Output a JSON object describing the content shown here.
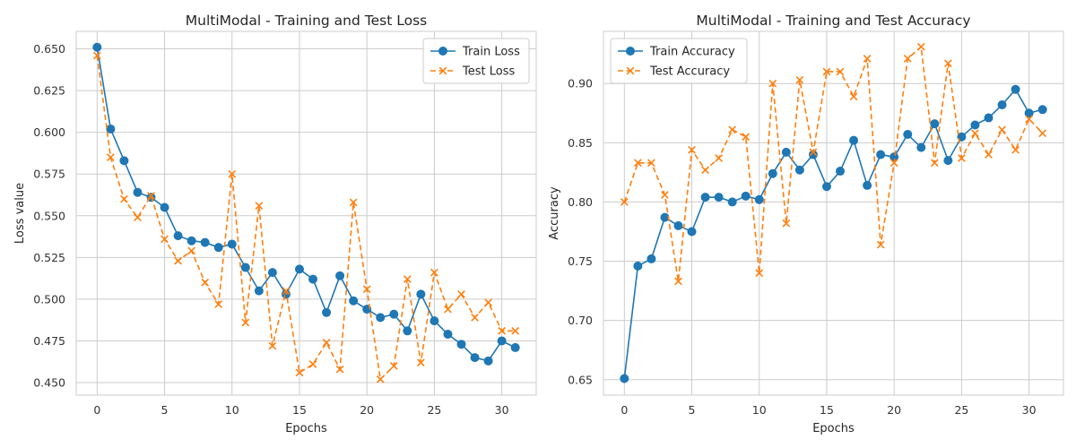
{
  "chart_data": [
    {
      "type": "line",
      "title": "MultiModal - Training and Test Loss",
      "xlabel": "Epochs",
      "ylabel": "Loss value",
      "xlim": [
        -1.55,
        32.55
      ],
      "ylim": [
        0.4425,
        0.6605
      ],
      "xticks": [
        0,
        5,
        10,
        15,
        20,
        25,
        30
      ],
      "yticks": [
        0.45,
        0.475,
        0.5,
        0.525,
        0.55,
        0.575,
        0.6,
        0.625,
        0.65
      ],
      "ytick_labels": [
        "0.450",
        "0.475",
        "0.500",
        "0.525",
        "0.550",
        "0.575",
        "0.600",
        "0.625",
        "0.650"
      ],
      "grid": true,
      "legend_position": "top-right",
      "x": [
        0,
        1,
        2,
        3,
        4,
        5,
        6,
        7,
        8,
        9,
        10,
        11,
        12,
        13,
        14,
        15,
        16,
        17,
        18,
        19,
        20,
        21,
        22,
        23,
        24,
        25,
        26,
        27,
        28,
        29,
        30,
        31
      ],
      "series": [
        {
          "name": "Train Loss",
          "color": "#1f77b4",
          "linestyle": "solid",
          "marker": "circle",
          "values": [
            0.651,
            0.602,
            0.583,
            0.564,
            0.561,
            0.555,
            0.538,
            0.535,
            0.534,
            0.531,
            0.533,
            0.519,
            0.505,
            0.516,
            0.503,
            0.518,
            0.512,
            0.492,
            0.514,
            0.499,
            0.494,
            0.489,
            0.491,
            0.481,
            0.503,
            0.487,
            0.479,
            0.473,
            0.465,
            0.463,
            0.475,
            0.471
          ]
        },
        {
          "name": "Test Loss",
          "color": "#ff7f0e",
          "linestyle": "dashed",
          "marker": "x",
          "values": [
            0.646,
            0.585,
            0.56,
            0.549,
            0.562,
            0.536,
            0.523,
            0.529,
            0.51,
            0.497,
            0.575,
            0.486,
            0.556,
            0.472,
            0.505,
            0.456,
            0.461,
            0.474,
            0.458,
            0.558,
            0.506,
            0.452,
            0.46,
            0.512,
            0.462,
            0.516,
            0.494,
            0.503,
            0.489,
            0.498,
            0.481,
            0.481
          ]
        }
      ]
    },
    {
      "type": "line",
      "title": "MultiModal - Training and Test Accuracy",
      "xlabel": "Epochs",
      "ylabel": "Accuracy",
      "xlim": [
        -1.55,
        32.55
      ],
      "ylim": [
        0.637,
        0.944
      ],
      "xticks": [
        0,
        5,
        10,
        15,
        20,
        25,
        30
      ],
      "yticks": [
        0.65,
        0.7,
        0.75,
        0.8,
        0.85,
        0.9
      ],
      "ytick_labels": [
        "0.65",
        "0.70",
        "0.75",
        "0.80",
        "0.85",
        "0.90"
      ],
      "grid": true,
      "legend_position": "top-left",
      "x": [
        0,
        1,
        2,
        3,
        4,
        5,
        6,
        7,
        8,
        9,
        10,
        11,
        12,
        13,
        14,
        15,
        16,
        17,
        18,
        19,
        20,
        21,
        22,
        23,
        24,
        25,
        26,
        27,
        28,
        29,
        30,
        31
      ],
      "series": [
        {
          "name": "Train Accuracy",
          "color": "#1f77b4",
          "linestyle": "solid",
          "marker": "circle",
          "values": [
            0.651,
            0.746,
            0.752,
            0.787,
            0.78,
            0.775,
            0.804,
            0.804,
            0.8,
            0.805,
            0.802,
            0.824,
            0.842,
            0.827,
            0.84,
            0.813,
            0.826,
            0.852,
            0.814,
            0.84,
            0.838,
            0.857,
            0.846,
            0.866,
            0.835,
            0.855,
            0.865,
            0.871,
            0.882,
            0.895,
            0.875,
            0.878
          ]
        },
        {
          "name": "Test Accuracy",
          "color": "#ff7f0e",
          "linestyle": "dashed",
          "marker": "x",
          "values": [
            0.8,
            0.833,
            0.833,
            0.806,
            0.733,
            0.844,
            0.827,
            0.837,
            0.861,
            0.855,
            0.74,
            0.9,
            0.782,
            0.903,
            0.842,
            0.91,
            0.91,
            0.889,
            0.921,
            0.764,
            0.833,
            0.921,
            0.931,
            0.833,
            0.917,
            0.837,
            0.858,
            0.84,
            0.861,
            0.844,
            0.87,
            0.858
          ]
        }
      ]
    }
  ]
}
